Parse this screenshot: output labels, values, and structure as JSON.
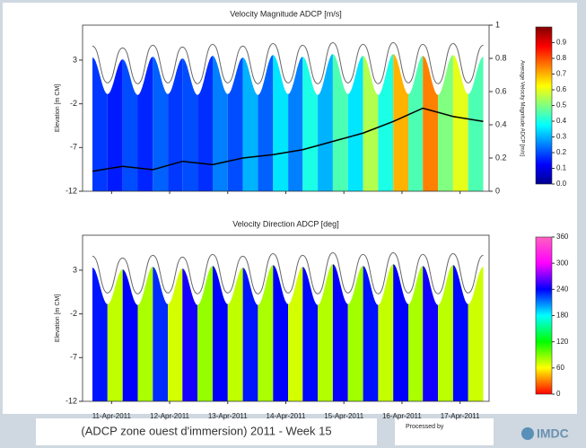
{
  "chart_data": [
    {
      "type": "heatmap",
      "title": "Velocity Magnitude ADCP [m/s]",
      "ylabel": "Elevation [m CM]",
      "ylim": [
        -12,
        7
      ],
      "yticks": [
        3,
        -2,
        -7,
        -12
      ],
      "xlim": [
        0,
        7
      ],
      "xticks": [
        {
          "value": 0.5,
          "label": "11-Apr-2011"
        },
        {
          "value": 1.5,
          "label": "12-Apr-2011"
        },
        {
          "value": 2.5,
          "label": "13-Apr-2011"
        },
        {
          "value": 3.5,
          "label": "14-Apr-2011"
        },
        {
          "value": 4.5,
          "label": "15-Apr-2011"
        },
        {
          "value": 5.5,
          "label": "16-Apr-2011"
        },
        {
          "value": 6.5,
          "label": "17-Apr-2011"
        }
      ],
      "tide_x": [
        0.17,
        0.43,
        0.69,
        0.95,
        1.21,
        1.47,
        1.72,
        1.98,
        2.24,
        2.5,
        2.76,
        3.02,
        3.28,
        3.54,
        3.79,
        4.05,
        4.31,
        4.57,
        4.83,
        5.09,
        5.35,
        5.61,
        5.86,
        6.12,
        6.38,
        6.64,
        6.9
      ],
      "tide": [
        4.6,
        0.4,
        4.4,
        0.3,
        4.7,
        0.4,
        4.5,
        0.3,
        4.8,
        0.4,
        4.6,
        0.3,
        4.9,
        0.4,
        4.7,
        0.3,
        5,
        0.4,
        4.8,
        0.3,
        5,
        0.4,
        4.8,
        0.3,
        4.9,
        0.4,
        4.7
      ],
      "values": [
        0.18,
        0.15,
        0.2,
        0.16,
        0.22,
        0.18,
        0.2,
        0.17,
        0.25,
        0.2,
        0.3,
        0.22,
        0.35,
        0.25,
        0.4,
        0.3,
        0.45,
        0.35,
        0.55,
        0.4,
        0.7,
        0.45,
        0.75,
        0.5,
        0.6,
        0.45
      ],
      "colormap": [
        "#00008f",
        "#0000ff",
        "#0080ff",
        "#00ffff",
        "#80ff80",
        "#ffff00",
        "#ff8000",
        "#ff0000",
        "#800000"
      ],
      "clim": [
        0,
        1
      ],
      "cticks": [
        {
          "value": 0,
          "label": "0.0"
        },
        0.1,
        0.2,
        0.3,
        0.4,
        0.5,
        0.6,
        0.7,
        0.8,
        0.9
      ],
      "y2label": "Average Velocity Magnitude ADCP [m/s]",
      "y2lim": [
        0,
        1
      ],
      "y2ticks": [
        0,
        0.2,
        0.4,
        0.6,
        0.8,
        1
      ],
      "line_x": [
        0.17,
        0.69,
        1.21,
        1.72,
        2.24,
        2.76,
        3.28,
        3.79,
        4.31,
        4.83,
        5.35,
        5.86,
        6.38,
        6.9
      ],
      "line_values": [
        0.12,
        0.15,
        0.13,
        0.18,
        0.16,
        0.2,
        0.22,
        0.25,
        0.3,
        0.35,
        0.42,
        0.5,
        0.45,
        0.42
      ]
    },
    {
      "type": "heatmap",
      "title": "Velocity Direction ADCP [deg]",
      "ylabel": "Elevation [m CM]",
      "ylim": [
        -12,
        7
      ],
      "yticks": [
        3,
        -2,
        -7,
        -12
      ],
      "xlim": [
        0,
        7
      ],
      "xticks": [
        {
          "value": 0.5,
          "label": "11-Apr-2011"
        },
        {
          "value": 1.5,
          "label": "12-Apr-2011"
        },
        {
          "value": 2.5,
          "label": "13-Apr-2011"
        },
        {
          "value": 3.5,
          "label": "14-Apr-2011"
        },
        {
          "value": 4.5,
          "label": "15-Apr-2011"
        },
        {
          "value": 5.5,
          "label": "16-Apr-2011"
        },
        {
          "value": 6.5,
          "label": "17-Apr-2011"
        }
      ],
      "tide_x": [
        0.17,
        0.43,
        0.69,
        0.95,
        1.21,
        1.47,
        1.72,
        1.98,
        2.24,
        2.5,
        2.76,
        3.02,
        3.28,
        3.54,
        3.79,
        4.05,
        4.31,
        4.57,
        4.83,
        5.09,
        5.35,
        5.61,
        5.86,
        6.12,
        6.38,
        6.64,
        6.9
      ],
      "tide": [
        4.6,
        0.4,
        4.4,
        0.3,
        4.7,
        0.4,
        4.5,
        0.3,
        4.8,
        0.4,
        4.6,
        0.3,
        4.9,
        0.4,
        4.7,
        0.3,
        5,
        0.4,
        4.8,
        0.3,
        5,
        0.4,
        4.8,
        0.3,
        4.9,
        0.4,
        4.7
      ],
      "values": [
        235,
        75,
        240,
        80,
        230,
        70,
        245,
        85,
        240,
        75,
        235,
        80,
        240,
        70,
        238,
        78,
        242,
        82,
        236,
        74,
        240,
        80,
        244,
        76,
        238,
        72
      ],
      "colormap": [
        "#ff0000",
        "#ffff00",
        "#00ff00",
        "#00ffff",
        "#0000ff",
        "#ff00ff",
        "#ff60c0"
      ],
      "clim": [
        0,
        360
      ],
      "cticks": [
        0,
        60,
        120,
        180,
        240,
        300,
        360
      ]
    }
  ],
  "footer": {
    "caption": "(ADCP zone ouest d'immersion) 2011 - Week 15",
    "processed_by": "Processed by",
    "logo": "IMDC"
  }
}
